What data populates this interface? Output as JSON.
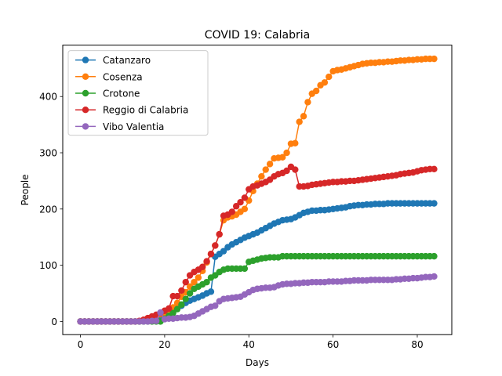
{
  "chart_data": {
    "type": "line",
    "title": "COVID 19: Calabria",
    "xlabel": "Days",
    "ylabel": "People",
    "xlim": [
      -4.2,
      88.2
    ],
    "ylim": [
      -23.4,
      491.4
    ],
    "xticks": [
      0,
      20,
      40,
      60,
      80
    ],
    "yticks": [
      0,
      100,
      200,
      300,
      400
    ],
    "grid": false,
    "legend_position": "upper-left",
    "series": [
      {
        "name": "Catanzaro",
        "color": "#1f77b4",
        "values": [
          0,
          0,
          0,
          0,
          0,
          0,
          0,
          0,
          0,
          0,
          0,
          0,
          0,
          0,
          0,
          1,
          2,
          3,
          5,
          7,
          10,
          14,
          18,
          23,
          28,
          33,
          37,
          40,
          43,
          46,
          50,
          53,
          115,
          120,
          125,
          132,
          137,
          141,
          145,
          149,
          152,
          155,
          158,
          162,
          166,
          170,
          174,
          177,
          180,
          181,
          182,
          185,
          189,
          193,
          195,
          197,
          197,
          198,
          198,
          199,
          200,
          201,
          202,
          203,
          205,
          206,
          207,
          207,
          208,
          208,
          209,
          209,
          209,
          210,
          210,
          210,
          210,
          210,
          210,
          210,
          210,
          210,
          210,
          210,
          210
        ]
      },
      {
        "name": "Cosenza",
        "color": "#ff7f0e",
        "values": [
          0,
          0,
          0,
          0,
          0,
          0,
          0,
          0,
          0,
          0,
          0,
          0,
          0,
          0,
          0,
          2,
          5,
          8,
          10,
          13,
          16,
          20,
          25,
          33,
          44,
          52,
          62,
          70,
          78,
          90,
          105,
          120,
          135,
          155,
          180,
          185,
          187,
          190,
          195,
          200,
          215,
          232,
          245,
          258,
          270,
          280,
          290,
          291,
          292,
          300,
          316,
          317,
          355,
          365,
          390,
          405,
          410,
          420,
          425,
          435,
          445,
          447,
          448,
          450,
          452,
          454,
          456,
          458,
          459,
          460,
          460,
          461,
          461,
          462,
          462,
          463,
          464,
          464,
          465,
          465,
          466,
          466,
          467,
          467,
          467
        ]
      },
      {
        "name": "Crotone",
        "color": "#2ca02c",
        "values": [
          0,
          0,
          0,
          0,
          0,
          0,
          0,
          0,
          0,
          0,
          0,
          0,
          0,
          0,
          0,
          0,
          0,
          0,
          0,
          0,
          5,
          10,
          15,
          22,
          30,
          40,
          50,
          58,
          62,
          66,
          70,
          78,
          82,
          88,
          92,
          94,
          94,
          94,
          94,
          94,
          106,
          108,
          110,
          112,
          113,
          114,
          114,
          114,
          116,
          116,
          116,
          116,
          116,
          116,
          116,
          116,
          116,
          116,
          116,
          116,
          116,
          116,
          116,
          116,
          116,
          116,
          116,
          116,
          116,
          116,
          116,
          116,
          116,
          116,
          116,
          116,
          116,
          116,
          116,
          116,
          116,
          116,
          116,
          116,
          116
        ]
      },
      {
        "name": "Reggio di Calabria",
        "color": "#d62728",
        "values": [
          0,
          0,
          0,
          0,
          0,
          0,
          0,
          0,
          0,
          0,
          0,
          0,
          0,
          0,
          1,
          3,
          6,
          9,
          12,
          15,
          19,
          23,
          45,
          45,
          55,
          70,
          82,
          88,
          92,
          97,
          107,
          120,
          135,
          155,
          188,
          190,
          195,
          205,
          212,
          220,
          235,
          240,
          242,
          245,
          248,
          252,
          258,
          262,
          264,
          268,
          275,
          270,
          240,
          240,
          241,
          243,
          244,
          245,
          246,
          247,
          248,
          248,
          249,
          249,
          250,
          250,
          251,
          252,
          253,
          254,
          255,
          256,
          257,
          258,
          259,
          260,
          262,
          263,
          264,
          265,
          267,
          269,
          270,
          271,
          271
        ]
      },
      {
        "name": "Vibo Valentia",
        "color": "#9467bd",
        "values": [
          0,
          0,
          0,
          0,
          0,
          0,
          0,
          0,
          0,
          0,
          0,
          0,
          0,
          0,
          0,
          0,
          0,
          1,
          1,
          16,
          4,
          5,
          5,
          6,
          7,
          7,
          8,
          10,
          14,
          18,
          22,
          26,
          28,
          36,
          40,
          41,
          42,
          43,
          44,
          48,
          52,
          56,
          58,
          59,
          60,
          60,
          61,
          64,
          66,
          67,
          67,
          68,
          68,
          69,
          69,
          70,
          70,
          70,
          70,
          71,
          71,
          71,
          71,
          72,
          72,
          73,
          73,
          73,
          73,
          74,
          74,
          74,
          74,
          74,
          74,
          75,
          75,
          76,
          76,
          77,
          77,
          78,
          79,
          79,
          80
        ]
      }
    ]
  }
}
